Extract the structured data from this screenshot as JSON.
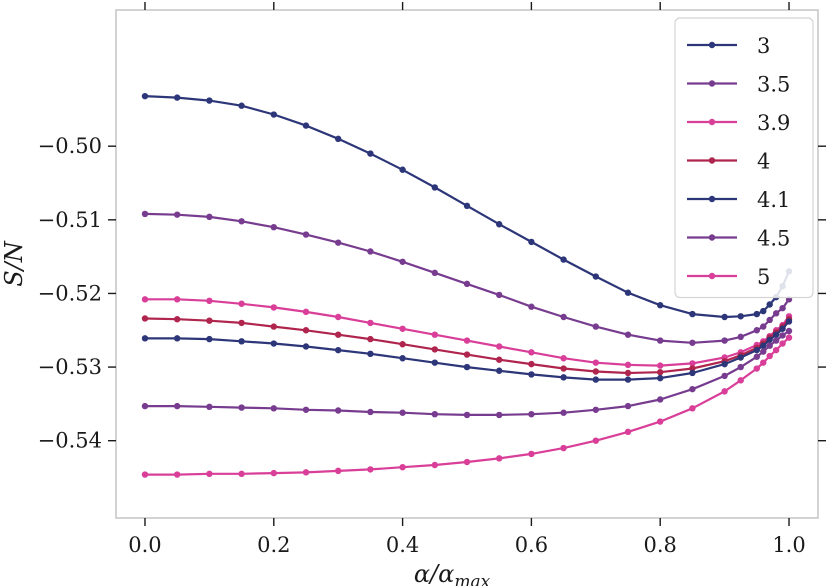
{
  "chart_data": {
    "type": "line",
    "title": "",
    "xlabel": {
      "main": "α/α",
      "sub": "max"
    },
    "ylabel": "S/N",
    "xlim": [
      -0.045,
      1.045
    ],
    "ylim": [
      -0.5505,
      -0.4815
    ],
    "xticks": [
      {
        "value": 0.0,
        "label": "0.0"
      },
      {
        "value": 0.2,
        "label": "0.2"
      },
      {
        "value": 0.4,
        "label": "0.4"
      },
      {
        "value": 0.6,
        "label": "0.6"
      },
      {
        "value": 0.8,
        "label": "0.8"
      },
      {
        "value": 1.0,
        "label": "1.0"
      }
    ],
    "yticks": [
      {
        "value": -0.5,
        "label": "−0.50"
      },
      {
        "value": -0.51,
        "label": "−0.51"
      },
      {
        "value": -0.52,
        "label": "−0.52"
      },
      {
        "value": -0.53,
        "label": "−0.53"
      },
      {
        "value": -0.54,
        "label": "−0.54"
      }
    ],
    "grid": false,
    "legend_position": "top-right",
    "x": [
      0.0,
      0.05,
      0.1,
      0.15,
      0.2,
      0.25,
      0.3,
      0.35,
      0.4,
      0.45,
      0.5,
      0.55,
      0.6,
      0.65,
      0.7,
      0.75,
      0.8,
      0.85,
      0.9,
      0.925,
      0.95,
      0.96,
      0.97,
      0.98,
      0.99,
      1.0
    ],
    "series": [
      {
        "name": "3",
        "color": "#2c3678",
        "values": [
          -0.4932,
          -0.4934,
          -0.4938,
          -0.4945,
          -0.4957,
          -0.4972,
          -0.499,
          -0.501,
          -0.5032,
          -0.5056,
          -0.5081,
          -0.5106,
          -0.513,
          -0.5154,
          -0.5177,
          -0.5199,
          -0.5216,
          -0.5228,
          -0.5232,
          -0.5231,
          -0.5228,
          -0.5224,
          -0.5215,
          -0.5205,
          -0.519,
          -0.517
        ]
      },
      {
        "name": "3.5",
        "color": "#773c8f",
        "values": [
          -0.5092,
          -0.5093,
          -0.5096,
          -0.5102,
          -0.511,
          -0.512,
          -0.5131,
          -0.5143,
          -0.5157,
          -0.5172,
          -0.5187,
          -0.5202,
          -0.5218,
          -0.5232,
          -0.5245,
          -0.5256,
          -0.5264,
          -0.5267,
          -0.5264,
          -0.5259,
          -0.525,
          -0.5245,
          -0.5236,
          -0.5227,
          -0.522,
          -0.5208
        ]
      },
      {
        "name": "3.9",
        "color": "#d93e98",
        "values": [
          -0.5208,
          -0.5208,
          -0.521,
          -0.5214,
          -0.5219,
          -0.5225,
          -0.5232,
          -0.524,
          -0.5248,
          -0.5256,
          -0.5264,
          -0.5272,
          -0.528,
          -0.5288,
          -0.5294,
          -0.5297,
          -0.5298,
          -0.5295,
          -0.5287,
          -0.528,
          -0.527,
          -0.5265,
          -0.5258,
          -0.525,
          -0.5243,
          -0.5231
        ]
      },
      {
        "name": "4",
        "color": "#b0254d",
        "values": [
          -0.5234,
          -0.5235,
          -0.5237,
          -0.524,
          -0.5245,
          -0.525,
          -0.5256,
          -0.5262,
          -0.5269,
          -0.5276,
          -0.5283,
          -0.529,
          -0.5296,
          -0.5302,
          -0.5306,
          -0.5308,
          -0.5307,
          -0.5302,
          -0.5292,
          -0.5284,
          -0.5274,
          -0.5268,
          -0.526,
          -0.5253,
          -0.5245,
          -0.5235
        ]
      },
      {
        "name": "4.1",
        "color": "#2c3678",
        "values": [
          -0.5261,
          -0.5261,
          -0.5262,
          -0.5265,
          -0.5268,
          -0.5272,
          -0.5277,
          -0.5282,
          -0.5288,
          -0.5294,
          -0.53,
          -0.5305,
          -0.531,
          -0.5314,
          -0.5317,
          -0.5317,
          -0.5315,
          -0.5308,
          -0.5296,
          -0.5287,
          -0.5277,
          -0.5271,
          -0.5263,
          -0.5256,
          -0.5248,
          -0.5238
        ]
      },
      {
        "name": "4.5",
        "color": "#773c8f",
        "values": [
          -0.5353,
          -0.5353,
          -0.5354,
          -0.5355,
          -0.5356,
          -0.5358,
          -0.5359,
          -0.5361,
          -0.5362,
          -0.5364,
          -0.5365,
          -0.5365,
          -0.5364,
          -0.5362,
          -0.5358,
          -0.5353,
          -0.5344,
          -0.533,
          -0.5312,
          -0.53,
          -0.5286,
          -0.5279,
          -0.5271,
          -0.5264,
          -0.5257,
          -0.5251
        ]
      },
      {
        "name": "5",
        "color": "#d93e98",
        "values": [
          -0.5446,
          -0.5446,
          -0.5445,
          -0.5445,
          -0.5444,
          -0.5443,
          -0.5441,
          -0.5439,
          -0.5436,
          -0.5433,
          -0.5429,
          -0.5424,
          -0.5418,
          -0.541,
          -0.54,
          -0.5388,
          -0.5374,
          -0.5356,
          -0.5333,
          -0.5318,
          -0.5302,
          -0.5294,
          -0.5285,
          -0.5277,
          -0.5268,
          -0.526
        ]
      }
    ]
  }
}
